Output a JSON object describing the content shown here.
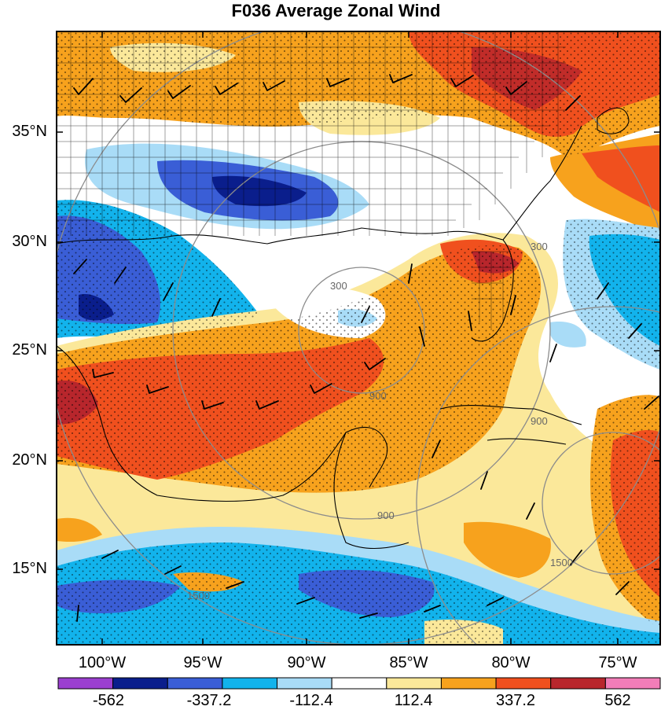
{
  "title": "F036 Average Zonal Wind",
  "lat_labels": [
    "35°N",
    "30°N",
    "25°N",
    "20°N",
    "15°N"
  ],
  "lon_labels": [
    "100°W",
    "95°W",
    "90°W",
    "85°W",
    "80°W",
    "75°W"
  ],
  "contour_labels": [
    "300",
    "900",
    "1500",
    "900",
    "300",
    "900",
    "1500"
  ],
  "colorbar": {
    "colors": [
      "#9b3fd0",
      "#0a1e8c",
      "#3a5ed6",
      "#12b3ec",
      "#a9dcf7",
      "#ffffff",
      "#fbe89a",
      "#f7a21d",
      "#f0501e",
      "#b8262c",
      "#f27db8"
    ],
    "tick_labels": [
      "-562",
      "-337.2",
      "-112.4",
      "112.4",
      "337.2",
      "562"
    ]
  },
  "palette": {
    "frame": "#000000",
    "range_rings": "#8c8c8c",
    "stipple": "#000000"
  }
}
